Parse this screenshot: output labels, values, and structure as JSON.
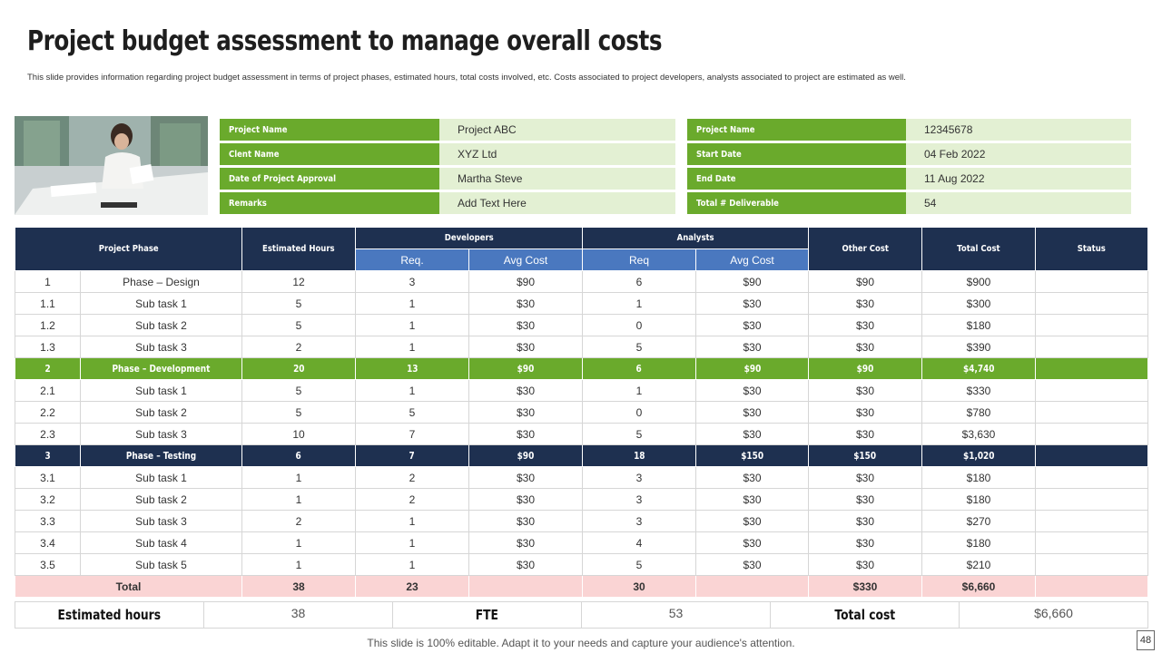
{
  "title": "Project budget assessment  to manage overall costs",
  "subtitle": "This slide provides information regarding project budget assessment in terms of project phases, estimated hours, total costs involved, etc. Costs associated to project developers, analysts associated to project are estimated  as well.",
  "info_left": [
    {
      "label": "Project Name",
      "value": "Project ABC"
    },
    {
      "label": "Clent Name",
      "value": "XYZ  Ltd"
    },
    {
      "label": "Date of Project Approval",
      "value": "Martha Steve"
    },
    {
      "label": "Remarks",
      "value": "Add Text Here"
    }
  ],
  "info_right": [
    {
      "label": "Project Name",
      "value": "12345678"
    },
    {
      "label": "Start Date",
      "value": "04 Feb 2022"
    },
    {
      "label": "End Date",
      "value": "11 Aug 2022"
    },
    {
      "label": "Total # Deliverable",
      "value": "54"
    }
  ],
  "table": {
    "headers": {
      "project_phase": "Project Phase",
      "estimated_hours": "Estimated Hours",
      "developers": "Developers",
      "analysts": "Analysts",
      "other_cost": "Other Cost",
      "total_cost": "Total Cost",
      "status": "Status",
      "req_dev": "Req.",
      "avg_cost_dev": "Avg Cost",
      "req_an": "Req",
      "avg_cost_an": "Avg Cost"
    },
    "rows": [
      {
        "type": "normal",
        "cells": [
          "1",
          "Phase – Design",
          "12",
          "3",
          "$90",
          "6",
          "$90",
          "$90",
          "$900",
          ""
        ]
      },
      {
        "type": "normal",
        "cells": [
          "1.1",
          "Sub task 1",
          "5",
          "1",
          "$30",
          "1",
          "$30",
          "$30",
          "$300",
          ""
        ]
      },
      {
        "type": "normal",
        "cells": [
          "1.2",
          "Sub task 2",
          "5",
          "1",
          "$30",
          "0",
          "$30",
          "$30",
          "$180",
          ""
        ]
      },
      {
        "type": "normal",
        "cells": [
          "1.3",
          "Sub task 3",
          "2",
          "1",
          "$30",
          "5",
          "$30",
          "$30",
          "$390",
          ""
        ]
      },
      {
        "type": "green",
        "cells": [
          "2",
          "Phase – Development",
          "20",
          "13",
          "$90",
          "6",
          "$90",
          "$90",
          "$4,740",
          ""
        ]
      },
      {
        "type": "normal",
        "cells": [
          "2.1",
          "Sub task 1",
          "5",
          "1",
          "$30",
          "1",
          "$30",
          "$30",
          "$330",
          ""
        ]
      },
      {
        "type": "normal",
        "cells": [
          "2.2",
          "Sub task 2",
          "5",
          "5",
          "$30",
          "0",
          "$30",
          "$30",
          "$780",
          ""
        ]
      },
      {
        "type": "normal",
        "cells": [
          "2.3",
          "Sub task 3",
          "10",
          "7",
          "$30",
          "5",
          "$30",
          "$30",
          "$3,630",
          ""
        ]
      },
      {
        "type": "navy",
        "cells": [
          "3",
          "Phase – Testing",
          "6",
          "7",
          "$90",
          "18",
          "$150",
          "$150",
          "$1,020",
          ""
        ]
      },
      {
        "type": "normal",
        "cells": [
          "3.1",
          "Sub task 1",
          "1",
          "2",
          "$30",
          "3",
          "$30",
          "$30",
          "$180",
          ""
        ]
      },
      {
        "type": "normal",
        "cells": [
          "3.2",
          "Sub task 2",
          "1",
          "2",
          "$30",
          "3",
          "$30",
          "$30",
          "$180",
          ""
        ]
      },
      {
        "type": "normal",
        "cells": [
          "3.3",
          "Sub task 3",
          "2",
          "1",
          "$30",
          "3",
          "$30",
          "$30",
          "$270",
          ""
        ]
      },
      {
        "type": "normal",
        "cells": [
          "3.4",
          "Sub task 4",
          "1",
          "1",
          "$30",
          "4",
          "$30",
          "$30",
          "$180",
          ""
        ]
      },
      {
        "type": "normal",
        "cells": [
          "3.5",
          "Sub task 5",
          "1",
          "1",
          "$30",
          "5",
          "$30",
          "$30",
          "$210",
          ""
        ]
      }
    ],
    "total": {
      "label": "Total",
      "hours": "38",
      "dev_req": "23",
      "dev_avg": "",
      "an_req": "30",
      "an_avg": "",
      "other": "$330",
      "total": "$6,660",
      "status": ""
    }
  },
  "summary": {
    "estimated_hours_label": "Estimated hours",
    "estimated_hours_value": "38",
    "fte_label": "FTE",
    "fte_value": "53",
    "total_cost_label": "Total cost",
    "total_cost_value": "$6,660"
  },
  "footer": "This slide is 100% editable. Adapt it to your needs and capture your audience's attention.",
  "page_number": "48",
  "colors": {
    "green": "#6aaa2c",
    "light_green": "#e3f0d3",
    "navy": "#1e3050",
    "blue": "#4a78bf",
    "pink": "#fad4d4"
  }
}
